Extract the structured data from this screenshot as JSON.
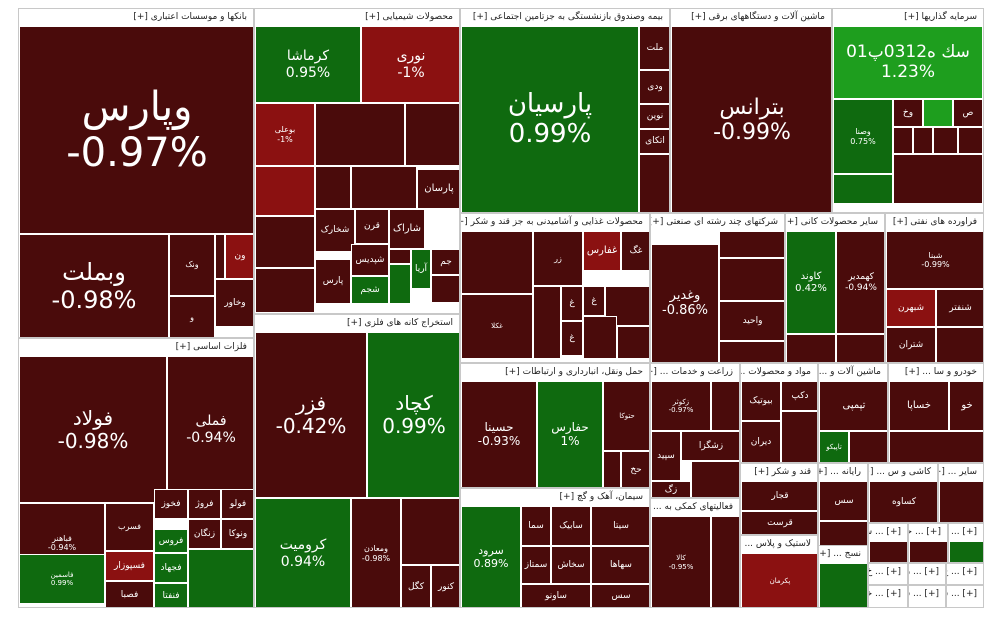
{
  "colors": {
    "strong_neg": "#4a0b0b",
    "mid_neg": "#8b1111",
    "strong_pos": "#0f6a0f",
    "bright_pos": "#1e9e1e",
    "light_pos": "#3e8e2e"
  },
  "sections": [
    {
      "id": "banks",
      "header": "بانکها و موسسات اعتباری [+]",
      "tiles": [
        {
          "name": "وپارس",
          "pct": "-0.97%",
          "tone": "strong_neg"
        },
        {
          "name": "وبملت",
          "pct": "-0.98%",
          "tone": "strong_neg"
        },
        {
          "name": "وخاور",
          "pct": "",
          "tone": "strong_neg"
        },
        {
          "name": "ون",
          "pct": "",
          "tone": "mid_neg"
        },
        {
          "name": "ونک",
          "pct": "",
          "tone": "strong_neg"
        },
        {
          "name": "و",
          "pct": "",
          "tone": "strong_neg"
        }
      ]
    },
    {
      "id": "chemicals",
      "header": "محصولات شیمیایی [+]",
      "tiles": [
        {
          "name": "کرماشا",
          "pct": "0.95%",
          "tone": "strong_pos"
        },
        {
          "name": "نوری",
          "pct": "-1%",
          "tone": "mid_neg"
        },
        {
          "name": "بوعلی",
          "pct": "-1%",
          "tone": "mid_neg"
        },
        {
          "name": "پارسان",
          "pct": "",
          "tone": "strong_neg"
        },
        {
          "name": "شاراک",
          "pct": "",
          "tone": "strong_neg"
        },
        {
          "name": "شخارک",
          "pct": "",
          "tone": "strong_neg"
        },
        {
          "name": "قرن",
          "pct": "",
          "tone": "strong_neg"
        },
        {
          "name": "شپدیس",
          "pct": "",
          "tone": "strong_neg"
        },
        {
          "name": "شجم",
          "pct": "",
          "tone": "strong_pos"
        },
        {
          "name": "آریا",
          "pct": "",
          "tone": "strong_pos"
        },
        {
          "name": "جم",
          "pct": "",
          "tone": "strong_neg"
        },
        {
          "name": "پارس",
          "pct": "",
          "tone": "strong_neg"
        }
      ]
    },
    {
      "id": "insurance",
      "header": "بیمه وصندوق بازنشستگی به جزتامین اجتماعی [+]",
      "tiles": [
        {
          "name": "پارسیان",
          "pct": "0.99%",
          "tone": "strong_pos"
        },
        {
          "name": "ملت",
          "pct": "",
          "tone": "strong_neg"
        },
        {
          "name": "ودی",
          "pct": "",
          "tone": "strong_neg"
        },
        {
          "name": "نوین",
          "pct": "",
          "tone": "strong_neg"
        },
        {
          "name": "اتکای",
          "pct": "",
          "tone": "strong_neg"
        }
      ]
    },
    {
      "id": "machinery",
      "header": "ماشین آلات و دستگاههای برقی [+]",
      "tiles": [
        {
          "name": "بترانس",
          "pct": "-0.99%",
          "tone": "strong_neg"
        }
      ]
    },
    {
      "id": "investment",
      "header": "سرمایه گذاریها [+]",
      "tiles": [
        {
          "name": "سك ه0312پ01",
          "pct": "1.23%",
          "tone": "bright_pos"
        },
        {
          "name": "وصنا",
          "pct": "0.75%",
          "tone": "strong_pos"
        },
        {
          "name": "وخ",
          "pct": "",
          "tone": "strong_neg"
        },
        {
          "name": "ص",
          "pct": "",
          "tone": "strong_neg"
        }
      ]
    },
    {
      "id": "food",
      "header": "محصولات غذایی و آشامیدنی به جز قند و شکر [+]",
      "tiles": [
        {
          "name": "غفارس",
          "pct": "",
          "tone": "mid_neg"
        },
        {
          "name": "غگ",
          "pct": "",
          "tone": "strong_neg"
        },
        {
          "name": "زر",
          "pct": "",
          "tone": "strong_neg"
        },
        {
          "name": "غکلا",
          "pct": "",
          "tone": "strong_neg"
        },
        {
          "name": "غ",
          "pct": "",
          "tone": "strong_neg"
        },
        {
          "name": "غ",
          "pct": "",
          "tone": "strong_neg"
        },
        {
          "name": "غ",
          "pct": "",
          "tone": "strong_neg"
        }
      ]
    },
    {
      "id": "multi",
      "header": "شرکتهای چند رشته ای صنعتی [+]",
      "tiles": [
        {
          "name": "وغدیر",
          "pct": "-0.86%",
          "tone": "strong_neg"
        },
        {
          "name": "واحید",
          "pct": "",
          "tone": "strong_neg"
        }
      ]
    },
    {
      "id": "nonmetal",
      "header": "سایر محصولات کانی [+]",
      "tiles": [
        {
          "name": "کاوند",
          "pct": "0.42%",
          "tone": "strong_pos"
        },
        {
          "name": "کهمدیر",
          "pct": "-0.94%",
          "tone": "strong_neg"
        }
      ]
    },
    {
      "id": "oil",
      "header": "فراورده های نفتی [+]",
      "tiles": [
        {
          "name": "شبنا",
          "pct": "-0.99%",
          "tone": "strong_neg"
        },
        {
          "name": "شبهرن",
          "pct": "",
          "tone": "mid_neg"
        },
        {
          "name": "شنفتر",
          "pct": "",
          "tone": "strong_neg"
        },
        {
          "name": "شتران",
          "pct": "",
          "tone": "strong_neg"
        }
      ]
    },
    {
      "id": "metals",
      "header": "فلزات اساسی [+]",
      "tiles": [
        {
          "name": "فولاد",
          "pct": "-0.98%",
          "tone": "strong_neg"
        },
        {
          "name": "فملی",
          "pct": "-0.94%",
          "tone": "strong_neg"
        },
        {
          "name": "فباهنر",
          "pct": "-0.94%",
          "tone": "strong_neg"
        },
        {
          "name": "فخوز",
          "pct": "",
          "tone": "strong_neg"
        },
        {
          "name": "فروژ",
          "pct": "",
          "tone": "strong_neg"
        },
        {
          "name": "فولو",
          "pct": "",
          "tone": "strong_neg"
        },
        {
          "name": "فسرب",
          "pct": "",
          "tone": "strong_neg"
        },
        {
          "name": "زنگان",
          "pct": "",
          "tone": "strong_neg"
        },
        {
          "name": "ونوکا",
          "pct": "",
          "tone": "strong_neg"
        },
        {
          "name": "فروس",
          "pct": "",
          "tone": "strong_pos"
        },
        {
          "name": "فسپوزار",
          "pct": "",
          "tone": "mid_neg"
        },
        {
          "name": "فاسمین",
          "pct": "0.99%",
          "tone": "strong_pos"
        },
        {
          "name": "فصبا",
          "pct": "",
          "tone": "strong_neg"
        },
        {
          "name": "فجهاد",
          "pct": "",
          "tone": "strong_pos"
        },
        {
          "name": "فنفتا",
          "pct": "",
          "tone": "strong_pos"
        }
      ]
    },
    {
      "id": "mining",
      "header": "استخراج کانه های فلزی [+]",
      "tiles": [
        {
          "name": "فزر",
          "pct": "-0.42%",
          "tone": "strong_neg"
        },
        {
          "name": "کچاد",
          "pct": "0.99%",
          "tone": "strong_pos"
        },
        {
          "name": "کرومیت",
          "pct": "0.94%",
          "tone": "strong_pos"
        },
        {
          "name": "ومعادن",
          "pct": "-0.98%",
          "tone": "strong_neg"
        },
        {
          "name": "کگل",
          "pct": "",
          "tone": "strong_neg"
        },
        {
          "name": "کنور",
          "pct": "",
          "tone": "strong_neg"
        }
      ]
    },
    {
      "id": "transport",
      "header": "حمل ونقل، انبارداری و ارتباطات [+]",
      "tiles": [
        {
          "name": "حسینا",
          "pct": "-0.93%",
          "tone": "strong_neg"
        },
        {
          "name": "حفارس",
          "pct": "1%",
          "tone": "strong_pos"
        },
        {
          "name": "حتوکا",
          "pct": "",
          "tone": "strong_neg"
        },
        {
          "name": "حخ",
          "pct": "",
          "tone": "strong_neg"
        }
      ]
    },
    {
      "id": "cement",
      "header": "سیمان، آهک و گچ [+]",
      "tiles": [
        {
          "name": "سرود",
          "pct": "0.89%",
          "tone": "strong_pos"
        },
        {
          "name": "سما",
          "pct": "",
          "tone": "strong_neg"
        },
        {
          "name": "سابیک",
          "pct": "",
          "tone": "strong_neg"
        },
        {
          "name": "سمتاز",
          "pct": "",
          "tone": "strong_neg"
        },
        {
          "name": "سیتا",
          "pct": "",
          "tone": "strong_neg"
        },
        {
          "name": "سخاش",
          "pct": "",
          "tone": "strong_neg"
        },
        {
          "name": "ساونو",
          "pct": "",
          "tone": "strong_neg"
        },
        {
          "name": "سهاها",
          "pct": "",
          "tone": "strong_neg"
        },
        {
          "name": "سس",
          "pct": "",
          "tone": "strong_neg"
        }
      ]
    },
    {
      "id": "agri",
      "header": "زراعت و خدمات ... [+]",
      "tiles": [
        {
          "name": "زکوثر",
          "pct": "-0.97%",
          "tone": "strong_neg"
        },
        {
          "name": "زشگزا",
          "pct": "",
          "tone": "strong_neg"
        },
        {
          "name": "سپید",
          "pct": "",
          "tone": "strong_neg"
        },
        {
          "name": "زگ",
          "pct": "",
          "tone": "strong_neg"
        }
      ]
    },
    {
      "id": "auxiliary",
      "header": "فعالیتهای کمکی به ... [+]",
      "tiles": [
        {
          "name": "کالا",
          "pct": "-0.95%",
          "tone": "strong_neg"
        }
      ]
    },
    {
      "id": "materials",
      "header": "مواد و محصولات ... [+]",
      "tiles": [
        {
          "name": "بیوتیک",
          "pct": "",
          "tone": "strong_neg"
        },
        {
          "name": "دیران",
          "pct": "",
          "tone": "strong_neg"
        },
        {
          "name": "دکپ",
          "pct": "",
          "tone": "strong_neg"
        }
      ]
    },
    {
      "id": "sugar",
      "header": "قند و شکر [+]",
      "tiles": [
        {
          "name": "قجار",
          "pct": "",
          "tone": "strong_neg"
        },
        {
          "name": "قرست",
          "pct": "",
          "tone": "strong_neg"
        }
      ]
    },
    {
      "id": "plastic",
      "header": "لاستیک و پلاس ... [+]",
      "tiles": [
        {
          "name": "پکرمان",
          "pct": "",
          "tone": "mid_neg"
        }
      ]
    },
    {
      "id": "machinery2",
      "header": "ماشین آلات و ... [+]",
      "tiles": [
        {
          "name": "تپمپی",
          "pct": "",
          "tone": "strong_neg"
        },
        {
          "name": "تاپیکو",
          "pct": "",
          "tone": "strong_pos"
        }
      ]
    },
    {
      "id": "auto",
      "header": "خودرو و سا ... [+]",
      "tiles": [
        {
          "name": "خساپا",
          "pct": "",
          "tone": "strong_neg"
        },
        {
          "name": "خو",
          "pct": "",
          "tone": "strong_neg"
        }
      ]
    },
    {
      "id": "computer",
      "header": "رایانه ... [+]",
      "tiles": [
        {
          "name": "سس",
          "pct": "",
          "tone": "strong_neg"
        }
      ]
    },
    {
      "id": "tiles",
      "header": "کاشی و س ... [+]",
      "tiles": [
        {
          "name": "کساوه",
          "pct": "",
          "tone": "strong_neg"
        }
      ]
    },
    {
      "id": "other",
      "header": "سایر ... [+]",
      "tiles": []
    },
    {
      "id": "textile",
      "header": "نسج ... [+]",
      "tiles": []
    },
    {
      "id": "s1",
      "header": "[+] ... سا",
      "tiles": []
    },
    {
      "id": "s2",
      "header": "[+] ... حا",
      "tiles": []
    },
    {
      "id": "s3",
      "header": "[+] ...",
      "tiles": []
    },
    {
      "id": "s4",
      "header": "[+] ... خ",
      "tiles": []
    },
    {
      "id": "s5",
      "header": "[+] ... ن",
      "tiles": []
    },
    {
      "id": "s6",
      "header": "[+] ... خد",
      "tiles": []
    },
    {
      "id": "s7",
      "header": "[+] ... سه",
      "tiles": []
    },
    {
      "id": "s8",
      "header": "[+] ... ج",
      "tiles": []
    },
    {
      "id": "s9",
      "header": "[+] ... سـ",
      "tiles": []
    }
  ]
}
